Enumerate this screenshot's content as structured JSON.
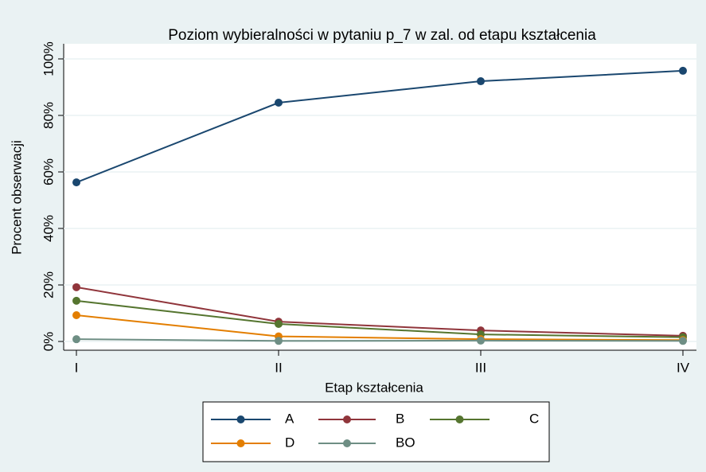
{
  "chart_data": {
    "type": "line",
    "title": "Poziom wybieralności w pytaniu p_7 w zal. od etapu kształcenia",
    "x_label": "Etap kształcenia",
    "y_label": "Procent obserwacji",
    "categories": [
      "I",
      "II",
      "III",
      "IV"
    ],
    "series": [
      {
        "name": "A",
        "color": "#1a476f",
        "values": [
          56.3,
          84.5,
          92.1,
          95.8
        ]
      },
      {
        "name": "B",
        "color": "#90353b",
        "values": [
          19.2,
          7,
          3.9,
          2
        ]
      },
      {
        "name": "C",
        "color": "#55752f",
        "values": [
          14.4,
          6.2,
          2.5,
          1.5
        ]
      },
      {
        "name": "D",
        "color": "#e37e00",
        "values": [
          9.3,
          1.8,
          0.8,
          0.5
        ]
      },
      {
        "name": "BO",
        "color": "#6e8e84",
        "values": [
          0.8,
          0.2,
          0.3,
          0.2
        ]
      }
    ],
    "ylim": [
      0,
      100
    ],
    "yticks": [
      {
        "value": 0,
        "label": "0%"
      },
      {
        "value": 20,
        "label": "20%"
      },
      {
        "value": 40,
        "label": "40%"
      },
      {
        "value": 60,
        "label": "60%"
      },
      {
        "value": 80,
        "label": "80%"
      },
      {
        "value": 100,
        "label": "100%"
      }
    ],
    "grid": true
  }
}
